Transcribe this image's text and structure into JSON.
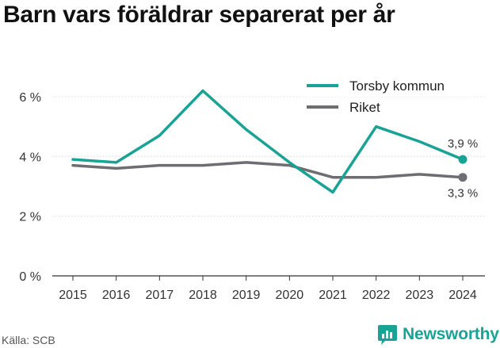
{
  "title": "Barn vars föräldrar separerat per år",
  "source": "Källa: SCB",
  "brand": "Newsworthy",
  "colors": {
    "torsby": "#1aa394",
    "riket": "#6e6e72",
    "grid": "#d9d9d9",
    "axis": "#333333"
  },
  "chart_data": {
    "type": "line",
    "x": [
      "2015",
      "2016",
      "2017",
      "2018",
      "2019",
      "2020",
      "2021",
      "2022",
      "2023",
      "2024"
    ],
    "yticks": [
      "0 %",
      "2 %",
      "4 %",
      "6 %"
    ],
    "ylim": [
      0,
      6.5
    ],
    "grid": true,
    "legend_position": "top-right",
    "series": [
      {
        "name": "Torsby kommun",
        "values": [
          3.9,
          3.8,
          4.7,
          6.2,
          4.9,
          3.8,
          2.8,
          5.0,
          4.5,
          3.9
        ],
        "end_label": "3,9 %"
      },
      {
        "name": "Riket",
        "values": [
          3.7,
          3.6,
          3.7,
          3.7,
          3.8,
          3.7,
          3.3,
          3.3,
          3.4,
          3.3
        ],
        "end_label": "3,3 %"
      }
    ]
  }
}
